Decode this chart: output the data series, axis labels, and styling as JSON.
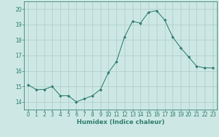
{
  "x": [
    0,
    1,
    2,
    3,
    4,
    5,
    6,
    7,
    8,
    9,
    10,
    11,
    12,
    13,
    14,
    15,
    16,
    17,
    18,
    19,
    20,
    21,
    22,
    23
  ],
  "y": [
    15.1,
    14.8,
    14.8,
    15.0,
    14.4,
    14.4,
    14.0,
    14.2,
    14.4,
    14.8,
    15.9,
    16.6,
    18.2,
    19.2,
    19.1,
    19.8,
    19.9,
    19.3,
    18.2,
    17.5,
    16.9,
    16.3,
    16.2,
    16.2
  ],
  "line_color": "#2e7d6e",
  "marker": "D",
  "marker_size": 2.0,
  "bg_color": "#cde8e4",
  "grid_color": "#b0cdc9",
  "xlabel": "Humidex (Indice chaleur)",
  "ylim": [
    13.5,
    20.5
  ],
  "xlim": [
    -0.5,
    23.5
  ],
  "yticks": [
    14,
    15,
    16,
    17,
    18,
    19,
    20
  ],
  "xticks": [
    0,
    1,
    2,
    3,
    4,
    5,
    6,
    7,
    8,
    9,
    10,
    11,
    12,
    13,
    14,
    15,
    16,
    17,
    18,
    19,
    20,
    21,
    22,
    23
  ],
  "tick_color": "#2e7d6e",
  "label_fontsize": 6.5,
  "tick_fontsize": 5.5
}
